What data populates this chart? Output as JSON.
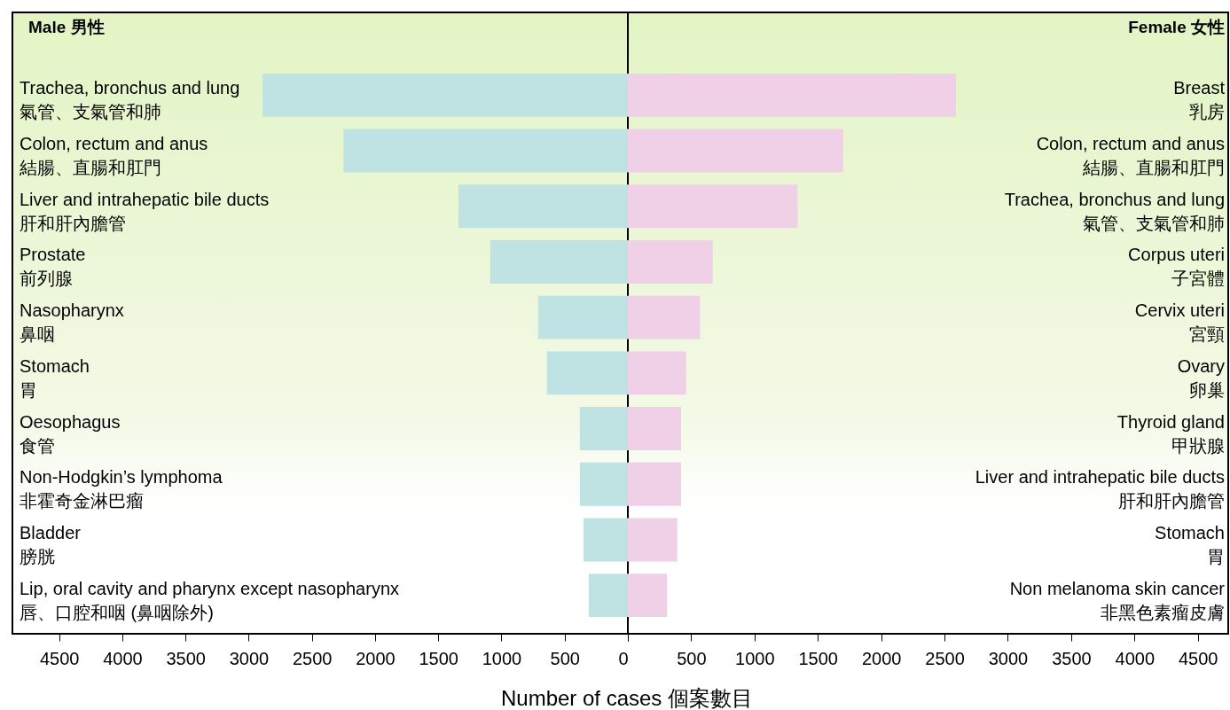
{
  "chart_data": [
    {
      "type": "bar",
      "orientation": "horizontal",
      "title": "Male 男性",
      "xlabel": "Number of cases 個案數目",
      "categories": [
        "Trachea, bronchus and lung\n氣管、支氣管和肺",
        "Colon, rectum and anus\n結腸、直腸和肛門",
        "Liver and intrahepatic bile ducts\n肝和肝內膽管",
        "Prostate\n前列腺",
        "Nasopharynx\n鼻咽",
        "Stomach\n胃",
        "Oesophagus\n食管",
        "Non-Hodgkin’s lymphoma\n非霍奇金淋巴瘤",
        "Bladder\n膀胱",
        "Lip, oral cavity and pharynx except nasopharynx\n唇、口腔和咽 (鼻咽除外)"
      ],
      "values": [
        2890,
        2250,
        1340,
        1090,
        710,
        640,
        380,
        380,
        350,
        310
      ],
      "color": "#bfe3e3",
      "xlim": [
        4870,
        0
      ],
      "xticks": [
        4500,
        4000,
        3500,
        3000,
        2500,
        2000,
        1500,
        1000,
        500,
        0
      ],
      "grid": false
    },
    {
      "type": "bar",
      "orientation": "horizontal",
      "title": "Female 女性",
      "categories": [
        "Breast\n乳房",
        "Colon, rectum and anus\n結腸、直腸和肛門",
        "Trachea, bronchus and lung\n氣管、支氣管和肺",
        "Corpus uteri\n子宮體",
        "Cervix uteri\n宮頸",
        "Ovary\n卵巢",
        "Thyroid gland\n甲狀腺",
        "Liver and intrahepatic bile ducts\n肝和肝內膽管",
        "Stomach\n胃",
        "Non melanoma skin cancer\n非黑色素瘤皮膚"
      ],
      "values": [
        2590,
        1700,
        1340,
        670,
        570,
        460,
        420,
        420,
        390,
        310
      ],
      "color": "#f0d0e6",
      "xlim": [
        0,
        4740
      ],
      "xticks": [
        {
          "value": 0,
          "label": null
        },
        500,
        1000,
        1500,
        2000,
        2500,
        3000,
        3500,
        4000,
        4500
      ],
      "grid": false
    }
  ]
}
